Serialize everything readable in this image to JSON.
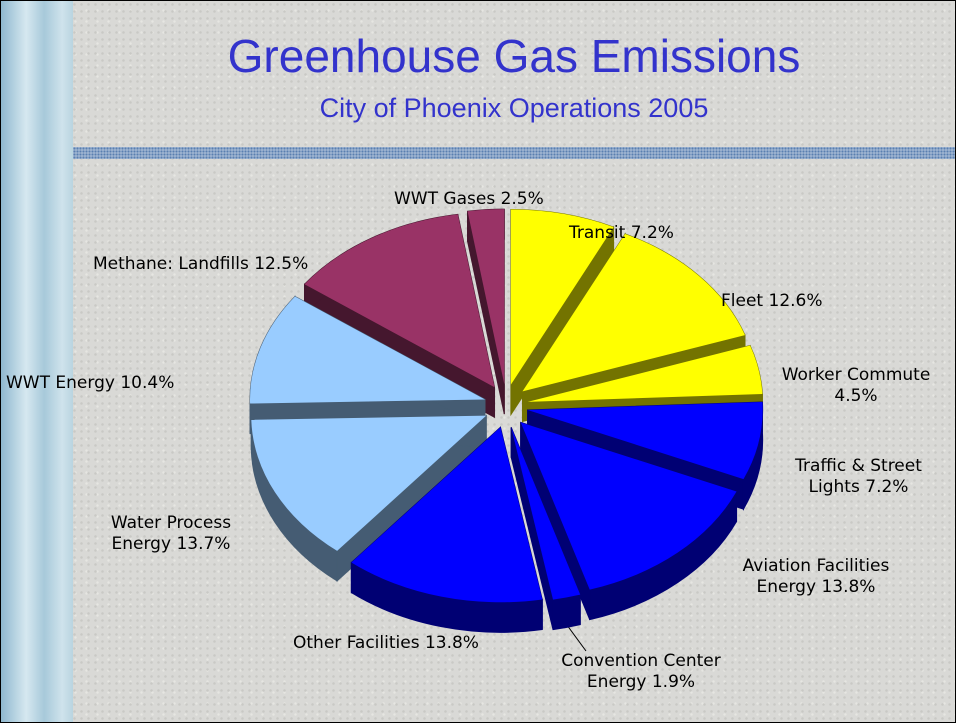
{
  "chart_data": {
    "type": "pie",
    "title": "Greenhouse Gas Emissions",
    "subtitle": "City of Phoenix Operations 2005",
    "categories": [
      "Transit",
      "Fleet",
      "Worker Commute",
      "Traffic & Street Lights",
      "Aviation Facilities Energy",
      "Convention Center Energy",
      "Other Facilities",
      "Water Process Energy",
      "WWT Energy",
      "Methane: Landfills",
      "WWT Gases"
    ],
    "values": [
      7.2,
      12.6,
      4.5,
      7.2,
      13.8,
      1.9,
      13.8,
      13.7,
      10.4,
      12.5,
      2.5
    ],
    "value_labels": [
      "7.2%",
      "12.6%",
      "4.5%",
      "7.2%",
      "13.8%",
      "1.9%",
      "13.8%",
      "13.7%",
      "10.4%",
      "12.5%",
      "2.5%"
    ],
    "colors": [
      "#ffff00",
      "#ffff00",
      "#ffff00",
      "#0000ff",
      "#0000ff",
      "#0000ff",
      "#0000ff",
      "#99ccff",
      "#99ccff",
      "#993366",
      "#993366"
    ]
  }
}
